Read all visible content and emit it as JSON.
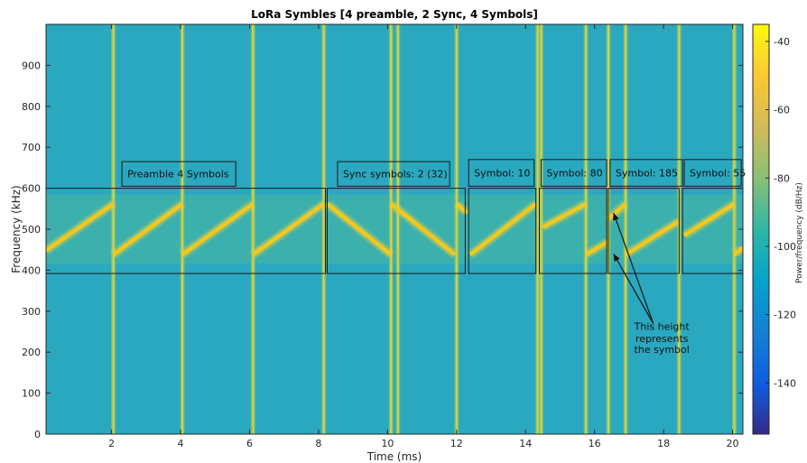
{
  "chart_data": {
    "type": "heatmap",
    "title": "LoRa Symbles [4 preamble, 2 Sync, 4 Symbols]",
    "xlabel": "Time (ms)",
    "ylabel": "Frequency (kHz)",
    "xlim": [
      0.1,
      20.3
    ],
    "ylim": [
      0,
      1000
    ],
    "xticks": [
      2,
      4,
      6,
      8,
      10,
      12,
      14,
      16,
      18,
      20
    ],
    "yticks": [
      0,
      100,
      200,
      300,
      400,
      500,
      600,
      700,
      800,
      900
    ],
    "colorbar": {
      "label": "Power/frequency (dB/Hz)",
      "range": [
        -155,
        -35
      ],
      "ticks": [
        -40,
        -60,
        -80,
        -100,
        -120,
        -140
      ],
      "colormap": "parula"
    },
    "background_color": "#2aa8c0",
    "chirp_color": "#f5c81c",
    "edge_color": "#e6d43a",
    "chirp_band_khz": [
      438,
      562
    ],
    "chirps": [
      {
        "t0": 0.1,
        "t1": 2.05,
        "f0": 448,
        "f1": 562
      },
      {
        "t0": 2.05,
        "t1": 4.05,
        "f0": 438,
        "f1": 562
      },
      {
        "t0": 4.05,
        "t1": 6.1,
        "f0": 438,
        "f1": 562
      },
      {
        "t0": 6.1,
        "t1": 8.15,
        "f0": 438,
        "f1": 562
      },
      {
        "t0": 8.25,
        "t1": 10.1,
        "f0": 562,
        "f1": 438
      },
      {
        "t0": 10.1,
        "t1": 11.95,
        "f0": 562,
        "f1": 438
      },
      {
        "t0": 12.0,
        "t1": 12.3,
        "f0": 562,
        "f1": 540
      },
      {
        "t0": 12.4,
        "t1": 14.3,
        "f0": 438,
        "f1": 562
      },
      {
        "t0": 14.5,
        "t1": 15.75,
        "f0": 505,
        "f1": 562
      },
      {
        "t0": 15.75,
        "t1": 16.4,
        "f0": 438,
        "f1": 470
      },
      {
        "t0": 16.4,
        "t1": 16.9,
        "f0": 525,
        "f1": 562
      },
      {
        "t0": 16.9,
        "t1": 18.45,
        "f0": 438,
        "f1": 520
      },
      {
        "t0": 18.6,
        "t1": 20.05,
        "f0": 485,
        "f1": 562
      },
      {
        "t0": 20.05,
        "t1": 20.3,
        "f0": 438,
        "f1": 455
      }
    ],
    "boundaries_ms": [
      2.05,
      4.05,
      6.1,
      8.15,
      10.1,
      10.3,
      12.0,
      14.35,
      14.45,
      15.75,
      16.4,
      16.9,
      18.45,
      20.05
    ],
    "boxes": [
      {
        "t0": 0.1,
        "t1": 8.2,
        "f0": 392,
        "f1": 600
      },
      {
        "t0": 8.25,
        "t1": 12.25,
        "f0": 392,
        "f1": 600
      },
      {
        "t0": 12.35,
        "t1": 14.3,
        "f0": 392,
        "f1": 600
      },
      {
        "t0": 14.4,
        "t1": 16.35,
        "f0": 392,
        "f1": 600
      },
      {
        "t0": 16.4,
        "t1": 18.45,
        "f0": 392,
        "f1": 600
      },
      {
        "t0": 18.55,
        "t1": 20.3,
        "f0": 392,
        "f1": 600
      }
    ],
    "labels": [
      {
        "text": "Preamble 4 Symbols",
        "t0": 2.3,
        "t1": 5.6,
        "f0": 605,
        "f1": 665
      },
      {
        "text": "Sync symbols: 2 (32)",
        "t0": 8.55,
        "t1": 11.8,
        "f0": 605,
        "f1": 665
      },
      {
        "text": "Symbol: 10",
        "t0": 12.35,
        "t1": 14.25,
        "f0": 605,
        "f1": 670
      },
      {
        "text": "Symbol: 80",
        "t0": 14.45,
        "t1": 16.35,
        "f0": 605,
        "f1": 670
      },
      {
        "text": "Symbol: 185",
        "t0": 16.45,
        "t1": 18.55,
        "f0": 605,
        "f1": 670
      },
      {
        "text": "Symbol: 55",
        "t0": 18.6,
        "t1": 20.25,
        "f0": 605,
        "f1": 670
      }
    ],
    "annotation": {
      "lines": [
        "This height",
        "represents",
        "the symbol"
      ],
      "t": 17.95,
      "f": [
        254,
        225,
        198
      ],
      "arrow_targets": [
        {
          "t": 16.55,
          "f": 540
        },
        {
          "t": 16.55,
          "f": 440
        }
      ],
      "arrow_start": {
        "t": 17.7,
        "f": 270
      }
    }
  }
}
